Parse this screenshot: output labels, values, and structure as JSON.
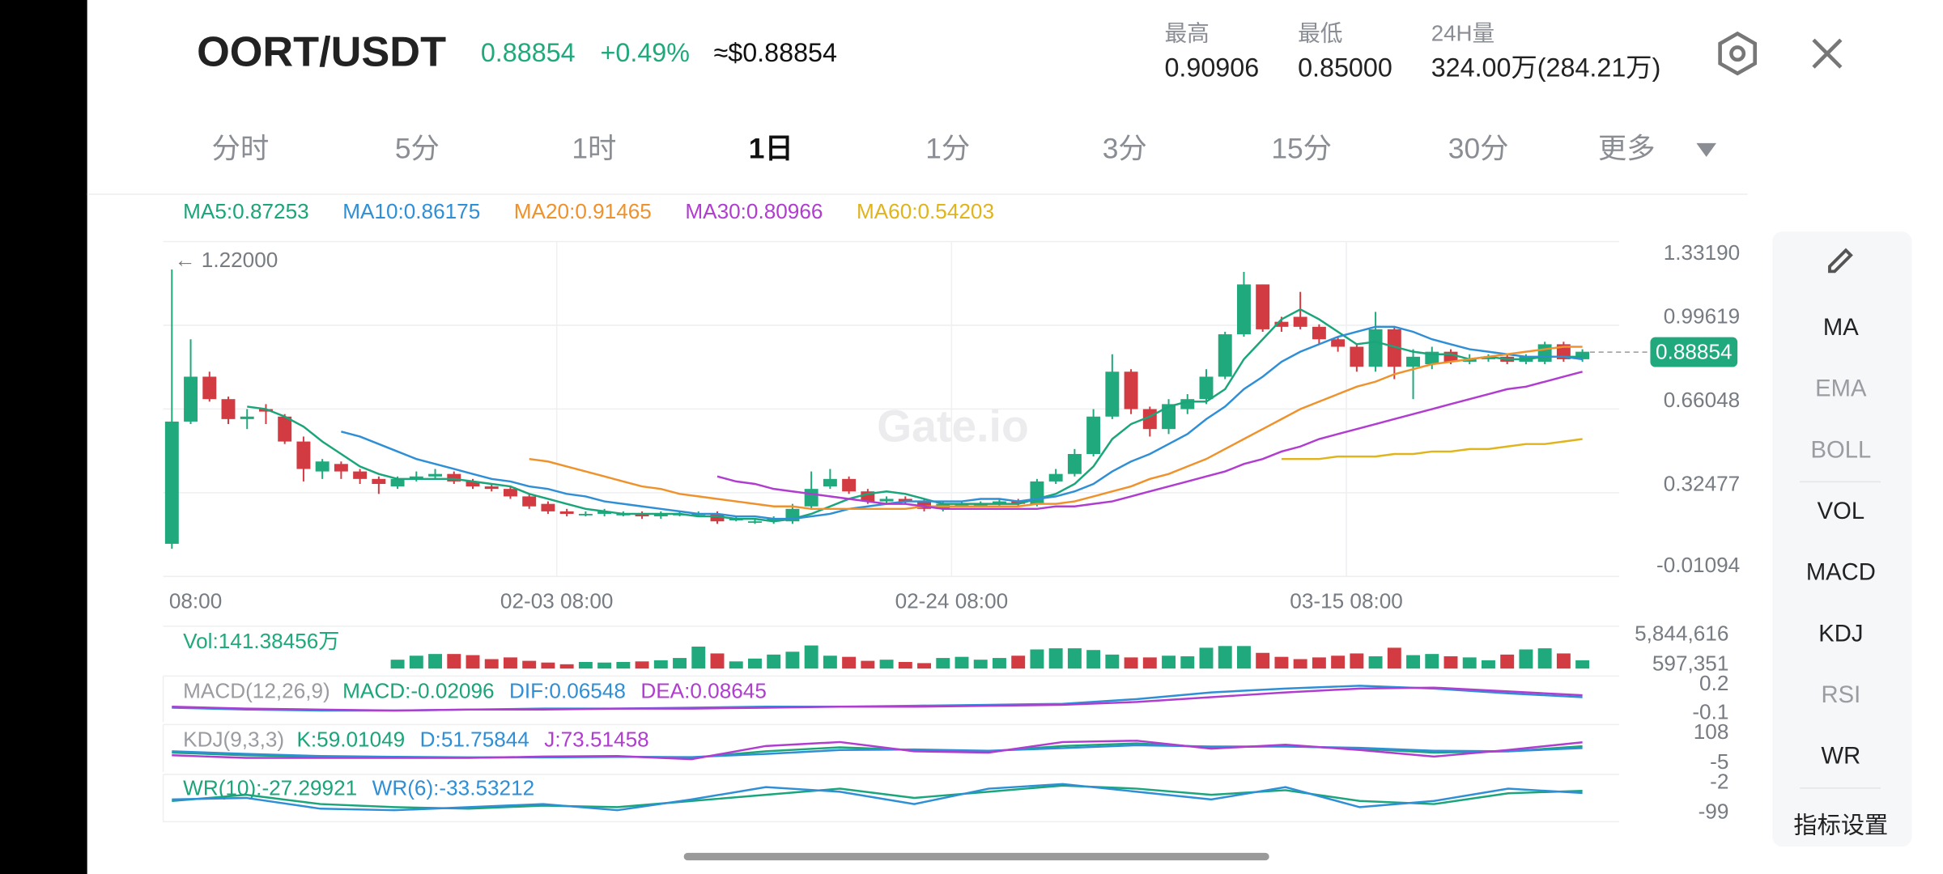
{
  "header": {
    "pair": "OORT/USDT",
    "price": "0.88854",
    "change": "+0.49%",
    "usd_price": "≈$0.88854"
  },
  "stats": [
    {
      "label": "最高",
      "value": "0.90906"
    },
    {
      "label": "最低",
      "value": "0.85000"
    },
    {
      "label": "24H量",
      "value": "324.00万(284.21万)"
    }
  ],
  "tabs": [
    "分时",
    "5分",
    "1时",
    "1日",
    "1分",
    "3分",
    "15分",
    "30分",
    "更多"
  ],
  "chart_data": {
    "type": "candlestick",
    "up_color": "#1fa97d",
    "down_color": "#d23b41",
    "ylim": [
      -0.01094,
      1.3319
    ],
    "yticks": [
      {
        "value": 1.3319,
        "label": "1.33190"
      },
      0.99619,
      0.66048,
      0.32477,
      -0.01094
    ],
    "grid": true,
    "x_labels": [
      "08:00",
      "02-03 08:00",
      "02-24 08:00",
      "03-15 08:00"
    ],
    "max_label": "← 1.22000",
    "watermark": "Gate.io",
    "last_price": {
      "value": 0.88854,
      "label": "0.88854"
    },
    "open": [
      0.12,
      0.61,
      0.79,
      0.7,
      0.62,
      0.66,
      0.63,
      0.53,
      0.41,
      0.44,
      0.41,
      0.38,
      0.35,
      0.38,
      0.39,
      0.4,
      0.37,
      0.35,
      0.34,
      0.31,
      0.28,
      0.25,
      0.24,
      0.24,
      0.24,
      0.24,
      0.23,
      0.24,
      0.24,
      0.24,
      0.22,
      0.21,
      0.21,
      0.21,
      0.27,
      0.35,
      0.38,
      0.33,
      0.29,
      0.3,
      0.29,
      0.26,
      0.28,
      0.28,
      0.28,
      0.29,
      0.28,
      0.37,
      0.4,
      0.48,
      0.63,
      0.81,
      0.66,
      0.58,
      0.66,
      0.7,
      0.79,
      0.96,
      1.16,
      1.01,
      1.03,
      0.99,
      0.94,
      0.91,
      0.83,
      0.98,
      0.83,
      0.84,
      0.89,
      0.85,
      0.86,
      0.87,
      0.85,
      0.85,
      0.92,
      0.86
    ],
    "high": [
      1.22,
      0.94,
      0.81,
      0.71,
      0.66,
      0.68,
      0.64,
      0.55,
      0.46,
      0.45,
      0.42,
      0.39,
      0.39,
      0.41,
      0.42,
      0.41,
      0.38,
      0.36,
      0.35,
      0.32,
      0.29,
      0.26,
      0.25,
      0.26,
      0.25,
      0.25,
      0.25,
      0.25,
      0.25,
      0.25,
      0.23,
      0.22,
      0.23,
      0.28,
      0.41,
      0.42,
      0.39,
      0.34,
      0.31,
      0.31,
      0.3,
      0.29,
      0.29,
      0.29,
      0.3,
      0.3,
      0.38,
      0.42,
      0.5,
      0.66,
      0.88,
      0.82,
      0.67,
      0.7,
      0.72,
      0.82,
      0.97,
      1.21,
      1.16,
      1.03,
      1.13,
      1.0,
      0.95,
      0.92,
      1.05,
      0.99,
      0.9,
      0.91,
      0.9,
      0.88,
      0.88,
      0.88,
      0.88,
      0.93,
      0.93,
      0.9
    ],
    "low": [
      0.1,
      0.6,
      0.69,
      0.6,
      0.58,
      0.6,
      0.52,
      0.37,
      0.38,
      0.38,
      0.36,
      0.32,
      0.34,
      0.37,
      0.38,
      0.36,
      0.34,
      0.33,
      0.3,
      0.26,
      0.24,
      0.23,
      0.23,
      0.23,
      0.23,
      0.22,
      0.22,
      0.23,
      0.23,
      0.2,
      0.21,
      0.2,
      0.2,
      0.2,
      0.26,
      0.34,
      0.32,
      0.28,
      0.28,
      0.28,
      0.25,
      0.25,
      0.27,
      0.27,
      0.27,
      0.27,
      0.27,
      0.36,
      0.39,
      0.47,
      0.62,
      0.64,
      0.55,
      0.56,
      0.64,
      0.68,
      0.78,
      0.95,
      0.97,
      0.97,
      0.98,
      0.92,
      0.89,
      0.81,
      0.81,
      0.78,
      0.7,
      0.82,
      0.84,
      0.84,
      0.85,
      0.84,
      0.84,
      0.84,
      0.85,
      0.85
    ],
    "close": [
      0.61,
      0.79,
      0.7,
      0.62,
      0.63,
      0.65,
      0.53,
      0.42,
      0.45,
      0.41,
      0.38,
      0.36,
      0.38,
      0.39,
      0.4,
      0.37,
      0.35,
      0.34,
      0.31,
      0.27,
      0.25,
      0.24,
      0.24,
      0.25,
      0.24,
      0.23,
      0.24,
      0.24,
      0.24,
      0.21,
      0.22,
      0.21,
      0.22,
      0.26,
      0.34,
      0.38,
      0.33,
      0.29,
      0.3,
      0.29,
      0.26,
      0.28,
      0.28,
      0.28,
      0.29,
      0.28,
      0.37,
      0.4,
      0.48,
      0.63,
      0.81,
      0.66,
      0.58,
      0.68,
      0.7,
      0.79,
      0.96,
      1.16,
      0.98,
      0.99,
      0.99,
      0.94,
      0.91,
      0.83,
      0.98,
      0.83,
      0.87,
      0.89,
      0.85,
      0.86,
      0.87,
      0.85,
      0.87,
      0.92,
      0.86,
      0.89
    ],
    "ma": [
      {
        "name": "MA5:0.87253",
        "color": "#1aa57a",
        "values": [
          null,
          null,
          null,
          null,
          0.67,
          0.66,
          0.63,
          0.59,
          0.53,
          0.48,
          0.43,
          0.4,
          0.38,
          0.38,
          0.38,
          0.38,
          0.37,
          0.36,
          0.35,
          0.32,
          0.3,
          0.28,
          0.26,
          0.25,
          0.24,
          0.24,
          0.24,
          0.24,
          0.23,
          0.23,
          0.22,
          0.22,
          0.21,
          0.22,
          0.24,
          0.27,
          0.3,
          0.32,
          0.33,
          0.32,
          0.3,
          0.28,
          0.28,
          0.28,
          0.28,
          0.28,
          0.3,
          0.32,
          0.36,
          0.43,
          0.54,
          0.6,
          0.63,
          0.67,
          0.69,
          0.69,
          0.74,
          0.86,
          0.94,
          1.02,
          1.06,
          1.02,
          0.97,
          0.92,
          0.93,
          0.91,
          0.89,
          0.88,
          0.88,
          0.86,
          0.87,
          0.86,
          0.86,
          0.87,
          0.87,
          0.87
        ]
      },
      {
        "name": "MA10:0.86175",
        "color": "#2f8fd6",
        "values": [
          null,
          null,
          null,
          null,
          null,
          null,
          null,
          null,
          null,
          0.57,
          0.55,
          0.52,
          0.49,
          0.46,
          0.44,
          0.42,
          0.4,
          0.38,
          0.37,
          0.35,
          0.34,
          0.32,
          0.31,
          0.29,
          0.28,
          0.27,
          0.26,
          0.25,
          0.24,
          0.24,
          0.23,
          0.23,
          0.22,
          0.22,
          0.23,
          0.24,
          0.26,
          0.27,
          0.28,
          0.29,
          0.29,
          0.29,
          0.29,
          0.3,
          0.3,
          0.29,
          0.3,
          0.31,
          0.33,
          0.36,
          0.41,
          0.45,
          0.48,
          0.52,
          0.56,
          0.62,
          0.67,
          0.74,
          0.79,
          0.85,
          0.89,
          0.92,
          0.95,
          0.97,
          0.99,
          0.99,
          0.97,
          0.94,
          0.92,
          0.9,
          0.89,
          0.88,
          0.87,
          0.87,
          0.87,
          0.86
        ]
      },
      {
        "name": "MA20:0.91465",
        "color": "#ef922c",
        "values": [
          null,
          null,
          null,
          null,
          null,
          null,
          null,
          null,
          null,
          null,
          null,
          null,
          null,
          null,
          null,
          null,
          null,
          null,
          null,
          0.46,
          0.45,
          0.43,
          0.41,
          0.39,
          0.37,
          0.35,
          0.34,
          0.32,
          0.31,
          0.3,
          0.29,
          0.28,
          0.27,
          0.27,
          0.26,
          0.26,
          0.26,
          0.26,
          0.26,
          0.26,
          0.27,
          0.27,
          0.27,
          0.27,
          0.27,
          0.27,
          0.28,
          0.28,
          0.29,
          0.31,
          0.33,
          0.35,
          0.38,
          0.4,
          0.43,
          0.46,
          0.5,
          0.54,
          0.58,
          0.62,
          0.66,
          0.69,
          0.72,
          0.75,
          0.77,
          0.8,
          0.82,
          0.84,
          0.85,
          0.86,
          0.87,
          0.88,
          0.89,
          0.9,
          0.91,
          0.91
        ]
      },
      {
        "name": "MA30:0.80966",
        "color": "#b03dd0",
        "values": [
          null,
          null,
          null,
          null,
          null,
          null,
          null,
          null,
          null,
          null,
          null,
          null,
          null,
          null,
          null,
          null,
          null,
          null,
          null,
          null,
          null,
          null,
          null,
          null,
          null,
          null,
          null,
          null,
          null,
          0.39,
          0.37,
          0.36,
          0.34,
          0.33,
          0.32,
          0.31,
          0.3,
          0.29,
          0.28,
          0.28,
          0.27,
          0.26,
          0.26,
          0.26,
          0.26,
          0.26,
          0.26,
          0.27,
          0.27,
          0.28,
          0.29,
          0.31,
          0.33,
          0.35,
          0.37,
          0.39,
          0.41,
          0.44,
          0.46,
          0.49,
          0.51,
          0.54,
          0.56,
          0.58,
          0.6,
          0.62,
          0.64,
          0.66,
          0.68,
          0.7,
          0.72,
          0.74,
          0.75,
          0.77,
          0.79,
          0.81
        ]
      },
      {
        "name": "MA60:0.54203",
        "color": "#e0b41c",
        "values": [
          null,
          null,
          null,
          null,
          null,
          null,
          null,
          null,
          null,
          null,
          null,
          null,
          null,
          null,
          null,
          null,
          null,
          null,
          null,
          null,
          null,
          null,
          null,
          null,
          null,
          null,
          null,
          null,
          null,
          null,
          null,
          null,
          null,
          null,
          null,
          null,
          null,
          null,
          null,
          null,
          null,
          null,
          null,
          null,
          null,
          null,
          null,
          null,
          null,
          null,
          null,
          null,
          null,
          null,
          null,
          null,
          null,
          null,
          null,
          0.46,
          0.46,
          0.46,
          0.47,
          0.47,
          0.47,
          0.48,
          0.48,
          0.49,
          0.49,
          0.5,
          0.5,
          0.51,
          0.52,
          0.52,
          0.53,
          0.54
        ]
      }
    ],
    "volume": {
      "title": "Vol:141.38456万",
      "ylim": [
        597351,
        5844616
      ],
      "yticks": [
        {
          "value": 5844616,
          "label": "5,844,616"
        },
        {
          "value": 597351,
          "label": "597,351"
        }
      ],
      "values": [
        null,
        null,
        null,
        null,
        null,
        null,
        null,
        null,
        null,
        null,
        null,
        null,
        1500000,
        2200000,
        2500000,
        2500000,
        2300000,
        1600000,
        1900000,
        1300000,
        1000000,
        700000,
        1100000,
        1000000,
        1100000,
        1200000,
        1400000,
        1800000,
        3800000,
        2600000,
        1200000,
        1700000,
        2400000,
        2900000,
        4000000,
        2200000,
        2000000,
        1300000,
        1500000,
        1100000,
        900000,
        1800000,
        2000000,
        1500000,
        1800000,
        2200000,
        3300000,
        3500000,
        3500000,
        3200000,
        2400000,
        1900000,
        1900000,
        2200000,
        2100000,
        3600000,
        3900000,
        3900000,
        2700000,
        2000000,
        1600000,
        1900000,
        2200000,
        2600000,
        2100000,
        3600000,
        2300000,
        2500000,
        2100000,
        1900000,
        1400000,
        2400000,
        3300000,
        3500000,
        2600000,
        1400000
      ]
    },
    "indicators": [
      {
        "title": "MACD(12,26,9)",
        "ylim": [
          -0.1,
          0.2
        ],
        "yticks": [
          0.2,
          -0.1
        ],
        "series": [
          {
            "name": "MACD:-0.02096",
            "color": "#1aa57a"
          },
          {
            "name": "DIF:0.06548",
            "color": "#2f8fd6",
            "values": [
              -0.04,
              -0.06,
              -0.07,
              -0.07,
              -0.06,
              -0.05,
              -0.05,
              -0.04,
              -0.03,
              -0.03,
              -0.02,
              -0.01,
              0.0,
              0.05,
              0.12,
              0.16,
              0.19,
              0.16,
              0.11,
              0.07
            ]
          },
          {
            "name": "DEA:0.08645",
            "color": "#b03dd0",
            "values": [
              -0.03,
              -0.05,
              -0.06,
              -0.07,
              -0.06,
              -0.06,
              -0.05,
              -0.05,
              -0.04,
              -0.03,
              -0.03,
              -0.02,
              -0.01,
              0.02,
              0.07,
              0.12,
              0.16,
              0.17,
              0.13,
              0.09
            ]
          }
        ]
      },
      {
        "title": "KDJ(9,3,3)",
        "ylim": [
          -5,
          108
        ],
        "yticks": [
          108,
          -5
        ],
        "series": [
          {
            "name": "K:59.01049",
            "color": "#1aa57a",
            "values": [
              35,
              25,
              20,
              18,
              16,
              18,
              20,
              16,
              40,
              55,
              45,
              40,
              60,
              70,
              55,
              60,
              50,
              35,
              40,
              59
            ]
          },
          {
            "name": "D:51.75844",
            "color": "#2f8fd6",
            "values": [
              40,
              30,
              22,
              19,
              17,
              17,
              19,
              18,
              30,
              45,
              47,
              42,
              52,
              63,
              58,
              58,
              53,
              42,
              40,
              52
            ]
          },
          {
            "name": "J:73.51458",
            "color": "#b03dd0",
            "values": [
              25,
              15,
              15,
              15,
              15,
              20,
              22,
              10,
              60,
              75,
              40,
              35,
              75,
              80,
              50,
              65,
              45,
              20,
              45,
              74
            ]
          }
        ]
      },
      {
        "title": "",
        "ylim": [
          -99,
          -2
        ],
        "yticks": [
          -2,
          -99
        ],
        "series": [
          {
            "name": "WR(10):-27.29921",
            "color": "#1aa57a",
            "values": [
              -60,
              -40,
              -70,
              -80,
              -85,
              -75,
              -80,
              -60,
              -40,
              -20,
              -50,
              -30,
              -10,
              -20,
              -40,
              -25,
              -60,
              -70,
              -35,
              -27
            ]
          },
          {
            "name": "WR(6):-33.53212",
            "color": "#2f8fd6",
            "values": [
              -55,
              -50,
              -85,
              -90,
              -80,
              -70,
              -90,
              -55,
              -15,
              -30,
              -70,
              -20,
              -5,
              -30,
              -55,
              -15,
              -80,
              -60,
              -20,
              -34
            ]
          }
        ]
      }
    ]
  },
  "sidebar": {
    "items": [
      "MA",
      "EMA",
      "BOLL",
      "VOL",
      "MACD",
      "KDJ",
      "RSI",
      "WR"
    ],
    "settings": "指标设置"
  }
}
